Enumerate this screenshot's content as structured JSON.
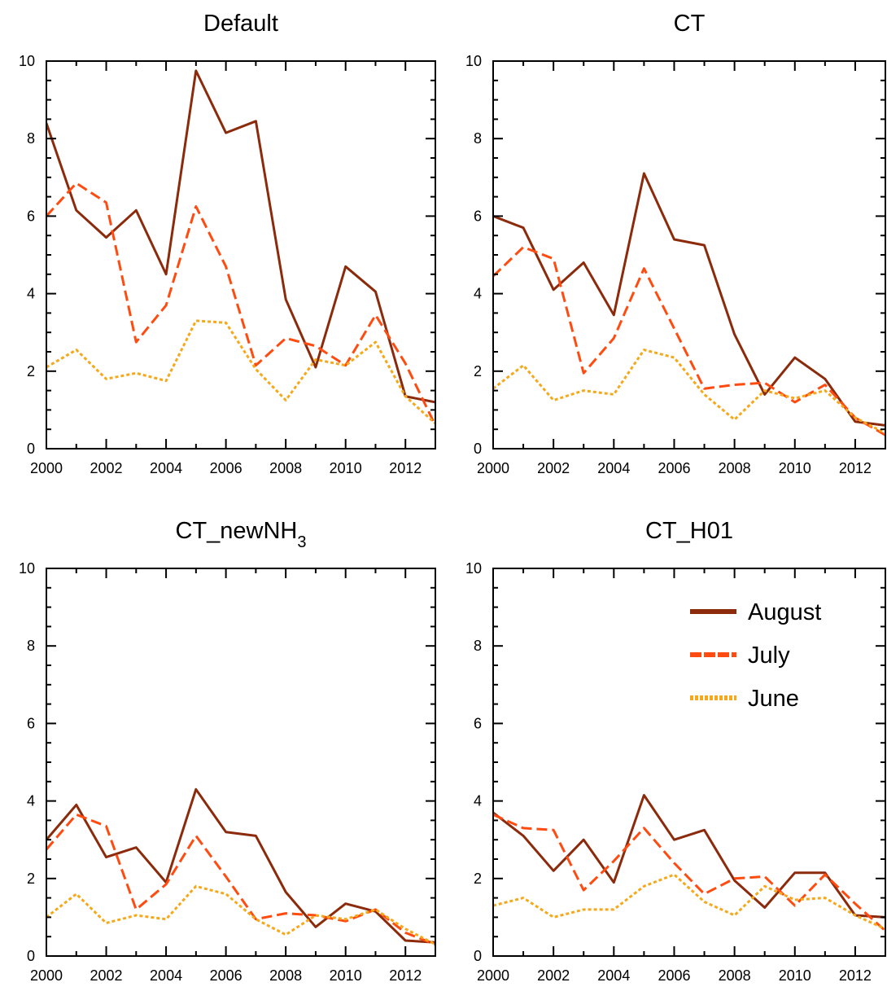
{
  "colors": {
    "August": "#8b2b0c",
    "July": "#ff4b10",
    "June": "#f5a91a",
    "axis": "#000000",
    "background": "#ffffff"
  },
  "legend": {
    "placement": "upper-right of bottom-right panel",
    "entries": [
      {
        "name": "August",
        "style": "solid"
      },
      {
        "name": "July",
        "style": "dashed"
      },
      {
        "name": "June",
        "style": "dotted"
      }
    ]
  },
  "chart_data": [
    {
      "type": "line",
      "title": "Default",
      "title_html": "Default",
      "xlim": [
        2000,
        2013
      ],
      "ylim": [
        0,
        10
      ],
      "xticks": [
        2000,
        2002,
        2004,
        2006,
        2008,
        2010,
        2012
      ],
      "yticks": [
        0,
        2,
        4,
        6,
        8,
        10
      ],
      "grid": false,
      "x": [
        2000,
        2001,
        2002,
        2003,
        2004,
        2005,
        2006,
        2007,
        2008,
        2009,
        2010,
        2011,
        2012,
        2013
      ],
      "series": [
        {
          "name": "August",
          "values": [
            8.4,
            6.15,
            5.45,
            6.15,
            4.5,
            9.75,
            8.15,
            8.45,
            3.85,
            2.1,
            4.7,
            4.05,
            1.35,
            1.2
          ]
        },
        {
          "name": "July",
          "values": [
            6.0,
            6.85,
            6.35,
            2.75,
            3.7,
            6.25,
            4.7,
            2.15,
            2.85,
            2.65,
            2.15,
            3.45,
            2.2,
            0.6
          ]
        },
        {
          "name": "June",
          "values": [
            2.1,
            2.55,
            1.8,
            1.95,
            1.75,
            3.3,
            3.25,
            2.05,
            1.25,
            2.3,
            2.15,
            2.75,
            1.35,
            0.65
          ]
        }
      ]
    },
    {
      "type": "line",
      "title": "CT",
      "title_html": "CT",
      "xlim": [
        2000,
        2013
      ],
      "ylim": [
        0,
        10
      ],
      "xticks": [
        2000,
        2002,
        2004,
        2006,
        2008,
        2010,
        2012
      ],
      "yticks": [
        0,
        2,
        4,
        6,
        8,
        10
      ],
      "grid": false,
      "x": [
        2000,
        2001,
        2002,
        2003,
        2004,
        2005,
        2006,
        2007,
        2008,
        2009,
        2010,
        2011,
        2012,
        2013
      ],
      "series": [
        {
          "name": "August",
          "values": [
            6.0,
            5.7,
            4.1,
            4.8,
            3.45,
            7.1,
            5.4,
            5.25,
            2.95,
            1.4,
            2.35,
            1.8,
            0.7,
            0.6
          ]
        },
        {
          "name": "July",
          "values": [
            4.45,
            5.2,
            4.9,
            1.95,
            2.85,
            4.65,
            3.1,
            1.55,
            1.65,
            1.7,
            1.2,
            1.65,
            0.8,
            0.35
          ]
        },
        {
          "name": "June",
          "values": [
            1.55,
            2.15,
            1.25,
            1.5,
            1.4,
            2.55,
            2.35,
            1.4,
            0.75,
            1.5,
            1.3,
            1.5,
            0.8,
            0.4
          ]
        }
      ]
    },
    {
      "type": "line",
      "title": "CT_newNH3",
      "title_html": "CT_newNH<tspan baseline-shift=\"sub\" font-size=\"20\">3</tspan>",
      "xlim": [
        2000,
        2013
      ],
      "ylim": [
        0,
        10
      ],
      "xticks": [
        2000,
        2002,
        2004,
        2006,
        2008,
        2010,
        2012
      ],
      "yticks": [
        0,
        2,
        4,
        6,
        8,
        10
      ],
      "grid": false,
      "x": [
        2000,
        2001,
        2002,
        2003,
        2004,
        2005,
        2006,
        2007,
        2008,
        2009,
        2010,
        2011,
        2012,
        2013
      ],
      "series": [
        {
          "name": "August",
          "values": [
            3.0,
            3.9,
            2.55,
            2.8,
            1.9,
            4.3,
            3.2,
            3.1,
            1.65,
            0.75,
            1.35,
            1.15,
            0.4,
            0.35
          ]
        },
        {
          "name": "July",
          "values": [
            2.75,
            3.65,
            3.35,
            1.2,
            1.85,
            3.1,
            2.05,
            0.95,
            1.1,
            1.05,
            0.9,
            1.2,
            0.6,
            0.3
          ]
        },
        {
          "name": "June",
          "values": [
            1.0,
            1.6,
            0.85,
            1.05,
            0.95,
            1.8,
            1.6,
            0.95,
            0.55,
            1.05,
            0.95,
            1.2,
            0.7,
            0.3
          ]
        }
      ]
    },
    {
      "type": "line",
      "title": "CT_H01",
      "title_html": "CT_H01",
      "xlim": [
        2000,
        2013
      ],
      "ylim": [
        0,
        10
      ],
      "xticks": [
        2000,
        2002,
        2004,
        2006,
        2008,
        2010,
        2012
      ],
      "yticks": [
        0,
        2,
        4,
        6,
        8,
        10
      ],
      "grid": false,
      "x": [
        2000,
        2001,
        2002,
        2003,
        2004,
        2005,
        2006,
        2007,
        2008,
        2009,
        2010,
        2011,
        2012,
        2013
      ],
      "series": [
        {
          "name": "August",
          "values": [
            3.7,
            3.1,
            2.2,
            3.0,
            1.9,
            4.15,
            3.0,
            3.25,
            1.95,
            1.25,
            2.15,
            2.15,
            1.05,
            1.0
          ]
        },
        {
          "name": "July",
          "values": [
            3.65,
            3.3,
            3.25,
            1.7,
            2.45,
            3.3,
            2.4,
            1.6,
            2.0,
            2.05,
            1.3,
            2.1,
            1.35,
            0.65
          ]
        },
        {
          "name": "June",
          "values": [
            1.3,
            1.5,
            1.0,
            1.2,
            1.2,
            1.8,
            2.1,
            1.4,
            1.05,
            1.8,
            1.45,
            1.5,
            1.05,
            0.7
          ]
        }
      ]
    }
  ]
}
